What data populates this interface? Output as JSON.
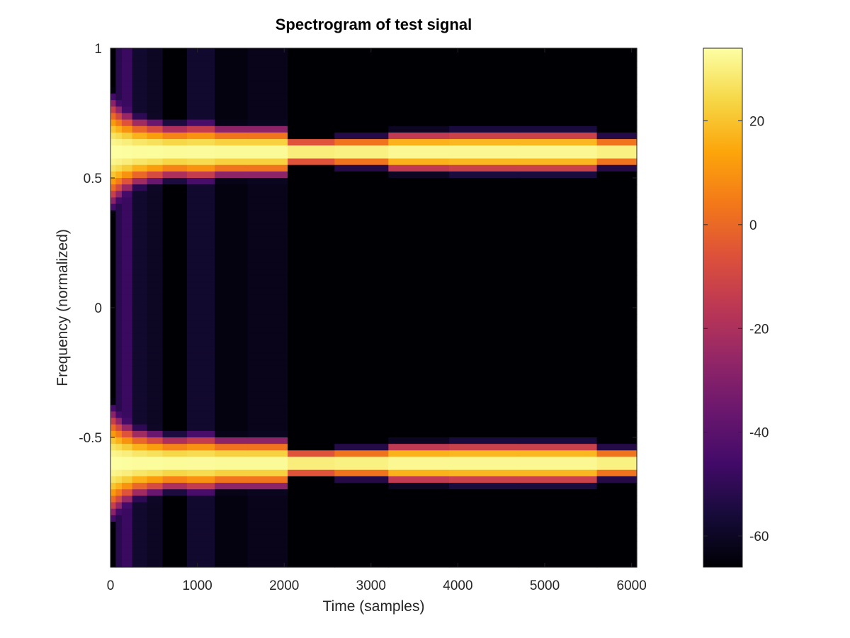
{
  "chart_data": {
    "type": "heatmap",
    "title": "Spectrogram of test signal",
    "xlabel": "Time (samples)",
    "ylabel": "Frequency (normalized)",
    "xlim": [
      0,
      6060
    ],
    "ylim": [
      -1,
      1
    ],
    "x_ticks": [
      0,
      1000,
      2000,
      3000,
      4000,
      5000,
      6000
    ],
    "x_tick_labels": [
      "0",
      "1000",
      "2000",
      "3000",
      "4000",
      "5000",
      "6000"
    ],
    "y_ticks": [
      1,
      0.5,
      0,
      -0.5
    ],
    "y_tick_labels": [
      "1",
      "0.5",
      "0",
      "-0.5"
    ],
    "colorbar": {
      "colormap": "inferno",
      "range": [
        -66,
        34
      ],
      "ticks": [
        20,
        0,
        -20,
        -40,
        -60
      ],
      "tick_labels": [
        "20",
        "0",
        "-20",
        "-40",
        "-60"
      ]
    },
    "components": [
      {
        "frequency": 0.6,
        "peak_db": 34
      },
      {
        "frequency": -0.6,
        "peak_db": 34
      }
    ],
    "time_segments": [
      {
        "t_start": 0,
        "t_end": 60,
        "sigma": 0.16,
        "floor_db": -75
      },
      {
        "t_start": 60,
        "t_end": 130,
        "sigma": 0.14,
        "floor_db": -52
      },
      {
        "t_start": 130,
        "t_end": 250,
        "sigma": 0.12,
        "floor_db": -48
      },
      {
        "t_start": 250,
        "t_end": 420,
        "sigma": 0.1,
        "floor_db": -58
      },
      {
        "t_start": 420,
        "t_end": 600,
        "sigma": 0.09,
        "floor_db": -60
      },
      {
        "t_start": 600,
        "t_end": 880,
        "sigma": 0.08,
        "floor_db": -66
      },
      {
        "t_start": 880,
        "t_end": 1200,
        "sigma": 0.085,
        "floor_db": -58
      },
      {
        "t_start": 1200,
        "t_end": 1580,
        "sigma": 0.075,
        "floor_db": -64
      },
      {
        "t_start": 1580,
        "t_end": 2040,
        "sigma": 0.075,
        "floor_db": -62
      },
      {
        "t_start": 2040,
        "t_end": 2580,
        "sigma": 0.04,
        "floor_db": -70
      },
      {
        "t_start": 2580,
        "t_end": 3200,
        "sigma": 0.045,
        "floor_db": -70
      },
      {
        "t_start": 3200,
        "t_end": 3900,
        "sigma": 0.06,
        "floor_db": -66
      },
      {
        "t_start": 3900,
        "t_end": 4700,
        "sigma": 0.062,
        "floor_db": -66
      },
      {
        "t_start": 4700,
        "t_end": 5600,
        "sigma": 0.062,
        "floor_db": -66
      },
      {
        "t_start": 5600,
        "t_end": 6060,
        "sigma": 0.045,
        "floor_db": -70
      }
    ]
  }
}
